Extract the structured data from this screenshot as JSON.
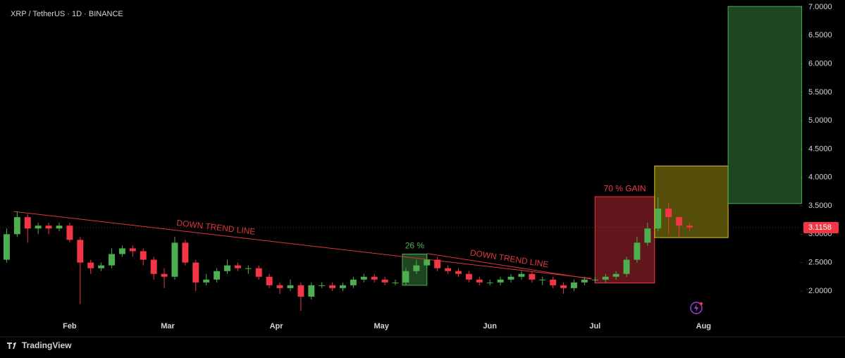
{
  "chart_data": {
    "type": "candlestick",
    "title": "XRP / TetherUS · 1D · BINANCE",
    "x": [
      14,
      17,
      20,
      23,
      26,
      29,
      32,
      35,
      38,
      41,
      44,
      47,
      50,
      53,
      56,
      59,
      62,
      65,
      68,
      71,
      74,
      77,
      80,
      83,
      86,
      89,
      92,
      95,
      98,
      101,
      104,
      107,
      110,
      113,
      116,
      119,
      122,
      125,
      128,
      131,
      134,
      137,
      140,
      143,
      146,
      149,
      152,
      155,
      158,
      161,
      164,
      167,
      170,
      173,
      176,
      179,
      182,
      185,
      188,
      191,
      194,
      197,
      200,
      203,
      206,
      209
    ],
    "open": [
      2.55,
      3.0,
      3.3,
      3.1,
      3.15,
      3.1,
      3.15,
      2.9,
      2.5,
      2.4,
      2.45,
      2.65,
      2.75,
      2.7,
      2.55,
      2.3,
      2.25,
      2.85,
      2.5,
      2.15,
      2.2,
      2.35,
      2.45,
      2.4,
      2.4,
      2.25,
      2.1,
      2.05,
      2.1,
      1.9,
      2.1,
      2.1,
      2.05,
      2.1,
      2.2,
      2.25,
      2.2,
      2.15,
      2.15,
      2.35,
      2.45,
      2.55,
      2.4,
      2.35,
      2.3,
      2.2,
      2.15,
      2.15,
      2.2,
      2.25,
      2.3,
      2.2,
      2.2,
      2.1,
      2.05,
      2.15,
      2.2,
      2.2,
      2.25,
      2.3,
      2.55,
      2.85,
      3.1,
      3.45,
      3.3,
      3.15
    ],
    "high": [
      3.1,
      3.4,
      3.35,
      3.2,
      3.2,
      3.2,
      3.2,
      2.95,
      2.55,
      2.5,
      2.75,
      2.8,
      2.8,
      2.75,
      2.6,
      2.4,
      2.95,
      2.9,
      2.55,
      2.3,
      2.4,
      2.55,
      2.5,
      2.45,
      2.45,
      2.3,
      2.15,
      2.2,
      2.15,
      2.15,
      2.15,
      2.15,
      2.15,
      2.25,
      2.3,
      2.3,
      2.25,
      2.2,
      2.4,
      2.55,
      2.65,
      2.6,
      2.45,
      2.4,
      2.35,
      2.25,
      2.2,
      2.25,
      2.3,
      2.35,
      2.35,
      2.25,
      2.25,
      2.15,
      2.2,
      2.25,
      2.25,
      2.3,
      2.35,
      2.6,
      2.95,
      3.2,
      3.65,
      3.55,
      3.3,
      3.2
    ],
    "low": [
      2.5,
      2.95,
      2.85,
      3.0,
      3.0,
      3.05,
      2.85,
      1.77,
      2.3,
      2.35,
      2.4,
      2.6,
      2.6,
      2.45,
      2.2,
      2.05,
      2.2,
      2.45,
      2.0,
      2.1,
      2.15,
      2.3,
      2.35,
      2.3,
      2.2,
      2.05,
      1.95,
      2.0,
      1.65,
      1.85,
      2.05,
      2.0,
      2.0,
      2.05,
      2.15,
      2.15,
      2.1,
      2.1,
      2.1,
      2.3,
      2.4,
      2.35,
      2.3,
      2.25,
      2.15,
      2.1,
      2.1,
      2.1,
      2.15,
      2.2,
      2.15,
      2.1,
      2.05,
      1.95,
      2.0,
      2.1,
      2.15,
      2.15,
      2.2,
      2.25,
      2.5,
      2.8,
      3.05,
      3.0,
      2.95,
      3.05
    ],
    "close": [
      3.0,
      3.3,
      3.1,
      3.15,
      3.1,
      3.15,
      2.9,
      2.5,
      2.4,
      2.45,
      2.65,
      2.75,
      2.7,
      2.55,
      2.3,
      2.25,
      2.85,
      2.5,
      2.15,
      2.2,
      2.35,
      2.45,
      2.4,
      2.4,
      2.25,
      2.1,
      2.05,
      2.1,
      1.9,
      2.1,
      2.1,
      2.05,
      2.1,
      2.2,
      2.25,
      2.2,
      2.15,
      2.15,
      2.35,
      2.45,
      2.55,
      2.4,
      2.35,
      2.3,
      2.2,
      2.15,
      2.15,
      2.2,
      2.25,
      2.3,
      2.2,
      2.2,
      2.1,
      2.05,
      2.15,
      2.2,
      2.2,
      2.25,
      2.3,
      2.55,
      2.85,
      3.1,
      3.45,
      3.3,
      3.15,
      3.12
    ],
    "up_color": "#4caf50",
    "down_color": "#f23645",
    "xlim": [
      12.1,
      240.5
    ],
    "ylim": [
      1.44,
      7.124
    ],
    "xticks": [
      {
        "value": 32,
        "label": "Feb"
      },
      {
        "value": 60,
        "label": "Mar"
      },
      {
        "value": 91,
        "label": "Apr"
      },
      {
        "value": 121,
        "label": "May"
      },
      {
        "value": 152,
        "label": "Jun"
      },
      {
        "value": 182,
        "label": "Jul"
      },
      {
        "value": 213,
        "label": "Aug"
      }
    ],
    "yticks": [
      {
        "value": 2,
        "label": "2.0000"
      },
      {
        "value": 2.5,
        "label": "2.5000"
      },
      {
        "value": 3,
        "label": "3.0000"
      },
      {
        "value": 3.5,
        "label": "3.5000"
      },
      {
        "value": 4,
        "label": "4.0000"
      },
      {
        "value": 4.5,
        "label": "4.5000"
      },
      {
        "value": 5,
        "label": "5.0000"
      },
      {
        "value": 5.5,
        "label": "5.5000"
      },
      {
        "value": 6,
        "label": "6.0000"
      },
      {
        "value": 6.5,
        "label": "6.5000"
      },
      {
        "value": 7,
        "label": "7.0000"
      }
    ],
    "last_price": 3.1158,
    "drawings": {
      "boxes": [
        {
          "label": "26 %",
          "x": [
            127,
            134
          ],
          "y": [
            2.1,
            2.65
          ],
          "color": "#4caf50"
        },
        {
          "label": "70 % GAIN",
          "x": [
            182,
            199
          ],
          "y": [
            2.14,
            3.66
          ],
          "color": "#f23645"
        },
        {
          "x": [
            199,
            220
          ],
          "y": [
            2.94,
            4.2
          ],
          "color": "#d4c21a"
        },
        {
          "x": [
            220,
            241
          ],
          "y": [
            3.54,
            7.01
          ],
          "color": "#4caf50"
        }
      ],
      "trend_lines": [
        {
          "label": "DOWN TREND LINE",
          "x": [
            16,
            181
          ],
          "y": [
            3.4,
            2.22
          ],
          "color": "#d9373c"
        },
        {
          "label": "DOWN TREND LINE",
          "x": [
            134,
            181
          ],
          "y": [
            2.66,
            2.21
          ],
          "color": "#d9373c"
        }
      ]
    }
  },
  "branding": "TradingView"
}
